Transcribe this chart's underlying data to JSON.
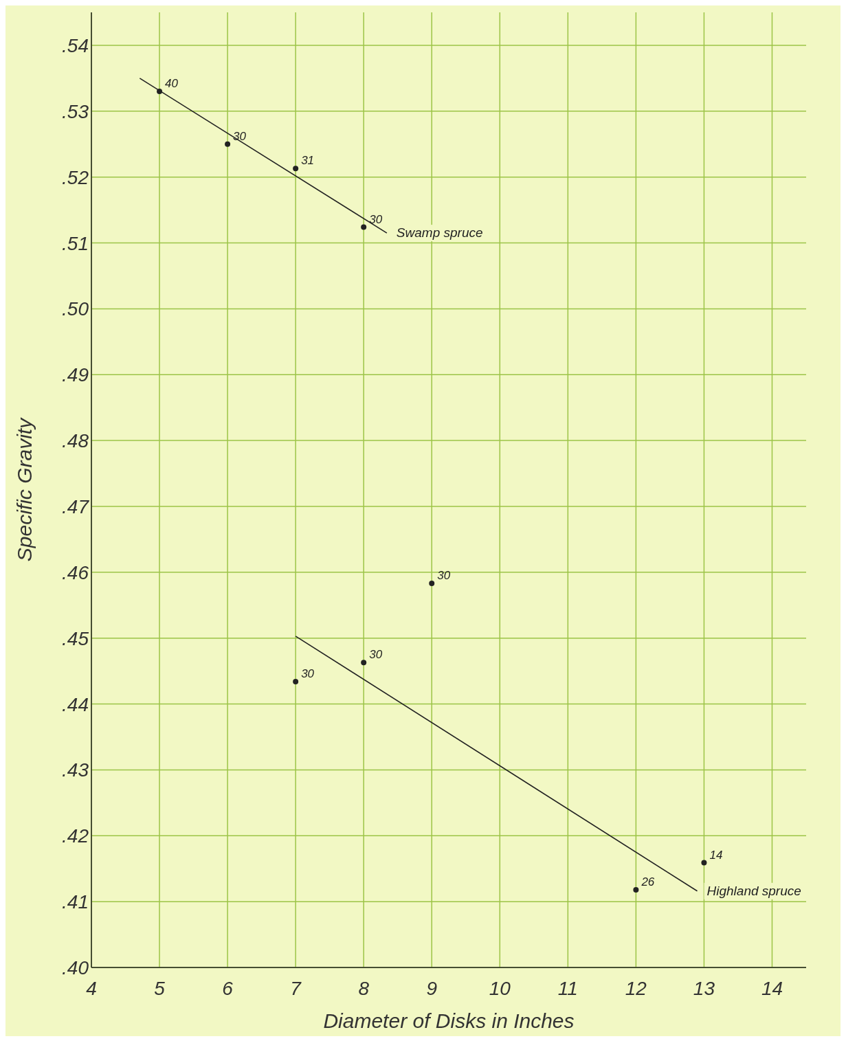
{
  "chart_data": {
    "type": "scatter",
    "xlabel": "Diameter of Disks in Inches",
    "ylabel": "Specific Gravity",
    "xlim": [
      4,
      14.5
    ],
    "ylim": [
      0.4,
      0.545
    ],
    "xticks": [
      4,
      5,
      6,
      7,
      8,
      9,
      10,
      11,
      12,
      13,
      14
    ],
    "yticks": [
      {
        "value": 0.4,
        "label": ".40"
      },
      {
        "value": 0.41,
        "label": ".41"
      },
      {
        "value": 0.42,
        "label": ".42"
      },
      {
        "value": 0.43,
        "label": ".43"
      },
      {
        "value": 0.44,
        "label": ".44"
      },
      {
        "value": 0.45,
        "label": ".45"
      },
      {
        "value": 0.46,
        "label": ".46"
      },
      {
        "value": 0.47,
        "label": ".47"
      },
      {
        "value": 0.48,
        "label": ".48"
      },
      {
        "value": 0.49,
        "label": ".49"
      },
      {
        "value": 0.5,
        "label": ".50"
      },
      {
        "value": 0.51,
        "label": ".51"
      },
      {
        "value": 0.52,
        "label": ".52"
      },
      {
        "value": 0.53,
        "label": ".53"
      },
      {
        "value": 0.54,
        "label": ".54"
      }
    ],
    "grid": true,
    "marker": "circle",
    "series": [
      {
        "color": "#222222",
        "x": [
          5,
          6,
          7,
          8
        ],
        "values": [
          0.533,
          0.525,
          0.5213,
          0.5124
        ]
      },
      {
        "type": "line",
        "name": "Swamp spruce",
        "color": "#222222",
        "marker": "none",
        "x": [
          4.71,
          8.34
        ],
        "values": [
          0.535,
          0.5115
        ]
      },
      {
        "color": "#222222",
        "x": [
          7,
          8,
          9,
          12,
          13
        ],
        "values": [
          0.4434,
          0.4463,
          0.4583,
          0.4118,
          0.4159
        ]
      },
      {
        "type": "line",
        "name": "Highland spruce",
        "color": "#222222",
        "marker": "none",
        "x": [
          7,
          12.9
        ],
        "values": [
          0.4503,
          0.4116
        ]
      }
    ],
    "annotations": [
      {
        "text": "40",
        "x": 5,
        "y": 0.533
      },
      {
        "text": "30",
        "x": 6,
        "y": 0.525
      },
      {
        "text": "31",
        "x": 7,
        "y": 0.5213
      },
      {
        "text": "30",
        "x": 8,
        "y": 0.5124
      },
      {
        "text": "30",
        "x": 7,
        "y": 0.4434
      },
      {
        "text": "30",
        "x": 8,
        "y": 0.4463
      },
      {
        "text": "30",
        "x": 9,
        "y": 0.4583
      },
      {
        "text": "26",
        "x": 12,
        "y": 0.4118
      },
      {
        "text": "14",
        "x": 13,
        "y": 0.4159
      }
    ]
  }
}
